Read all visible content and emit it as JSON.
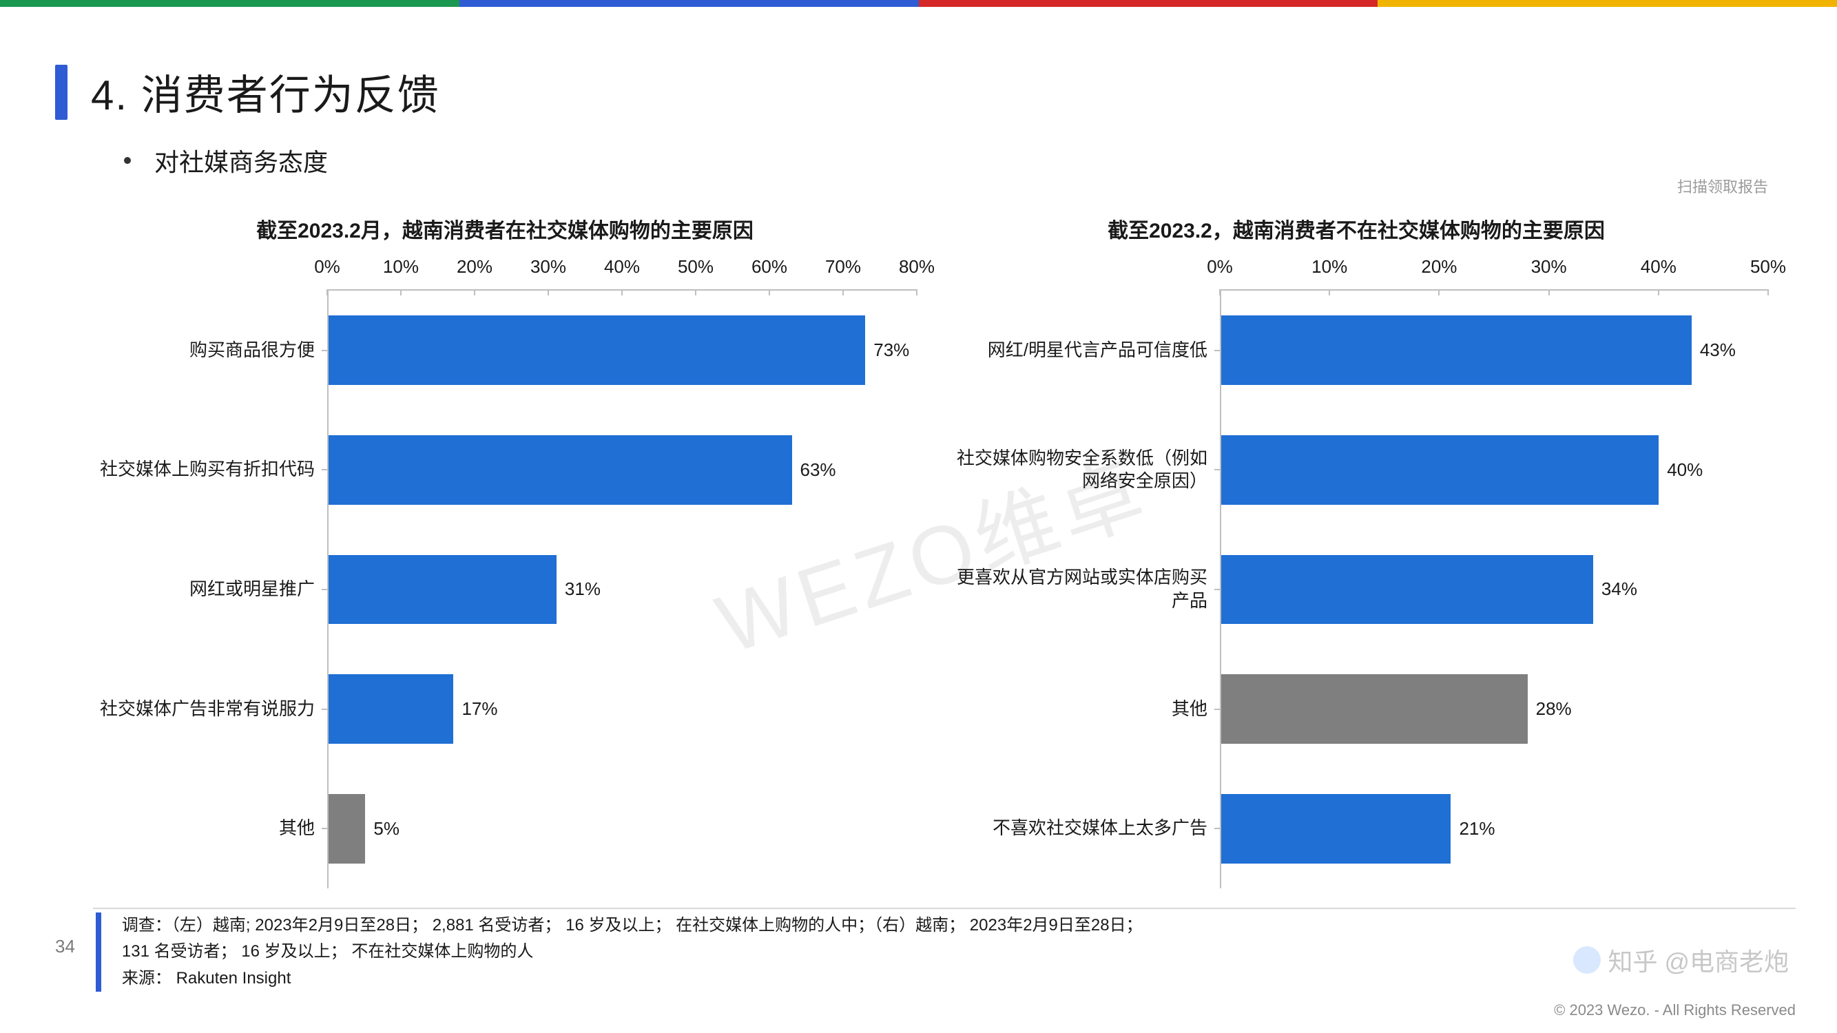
{
  "top_stripe_colors": [
    "#1a9850",
    "#2f5cd4",
    "#d62728",
    "#f0b400"
  ],
  "header": {
    "title": "4. 消费者行为反馈",
    "subtitle": "对社媒商务态度",
    "scan_hint": "扫描领取报告"
  },
  "watermark": "WEZO维卓",
  "chart_left": {
    "title": "截至2023.2月，越南消费者在社交媒体购物的主要原因",
    "xmax": 80,
    "xtick_step": 10,
    "xtick_labels": [
      "0%",
      "10%",
      "20%",
      "30%",
      "40%",
      "50%",
      "60%",
      "70%",
      "80%"
    ],
    "bar_color": "#1f6fd4",
    "other_color": "#7f7f7f",
    "label_fontsize": 26,
    "title_fontsize": 30,
    "rows": [
      {
        "label": "购买商品很方便",
        "value": 73,
        "text": "73%",
        "is_other": false
      },
      {
        "label": "社交媒体上购买有折扣代码",
        "value": 63,
        "text": "63%",
        "is_other": false
      },
      {
        "label": "网红或明星推广",
        "value": 31,
        "text": "31%",
        "is_other": false
      },
      {
        "label": "社交媒体广告非常有说服力",
        "value": 17,
        "text": "17%",
        "is_other": false
      },
      {
        "label": "其他",
        "value": 5,
        "text": "5%",
        "is_other": true
      }
    ]
  },
  "chart_right": {
    "title": "截至2023.2，越南消费者不在社交媒体购物的主要原因",
    "xmax": 50,
    "xtick_step": 10,
    "xtick_labels": [
      "0%",
      "10%",
      "20%",
      "30%",
      "40%",
      "50%"
    ],
    "bar_color": "#1f6fd4",
    "other_color": "#7f7f7f",
    "label_fontsize": 26,
    "title_fontsize": 30,
    "rows": [
      {
        "label": "网红/明星代言产品可信度低",
        "value": 43,
        "text": "43%",
        "is_other": false
      },
      {
        "label": "社交媒体购物安全系数低（例如网络安全原因）",
        "value": 40,
        "text": "40%",
        "is_other": false
      },
      {
        "label": "更喜欢从官方网站或实体店购买产品",
        "value": 34,
        "text": "34%",
        "is_other": false
      },
      {
        "label": "其他",
        "value": 28,
        "text": "28%",
        "is_other": true
      },
      {
        "label": "不喜欢社交媒体上太多广告",
        "value": 21,
        "text": "21%",
        "is_other": false
      }
    ]
  },
  "footer": {
    "page_number": "34",
    "line1": "调查：（左）越南; 2023年2月9日至28日；  2,881 名受访者；  16 岁及以上；  在社交媒体上购物的人中；（右）越南；  2023年2月9日至28日；",
    "line2": "131 名受访者；  16 岁及以上；  不在社交媒体上购物的人",
    "source_label": "来源：",
    "source_value": "Rakuten Insight",
    "copyright": "© 2023 Wezo. - All Rights Reserved",
    "corner_watermark": "知乎 @电商老炮"
  }
}
